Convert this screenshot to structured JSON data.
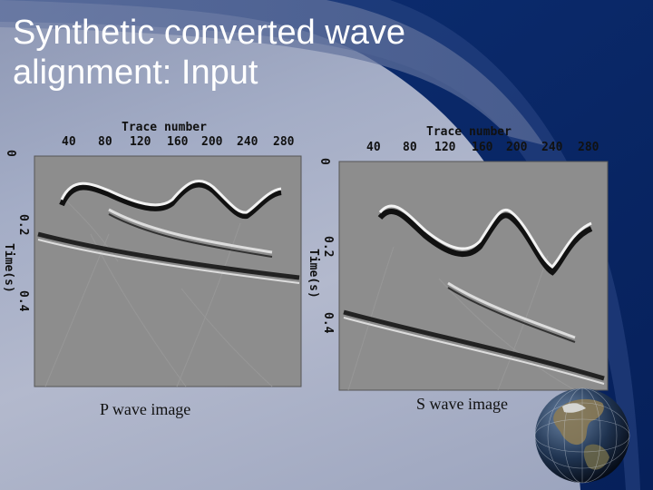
{
  "slide": {
    "title_line1": "Synthetic converted wave",
    "title_line2": "alignment: Input"
  },
  "panels": [
    {
      "id": "p",
      "axis_title_x": "Trace number",
      "axis_title_y": "Time(s)",
      "x_ticks": [
        "40",
        "80",
        "120",
        "160",
        "200",
        "240",
        "280"
      ],
      "y_ticks": [
        "0",
        "0.2",
        "0.4"
      ],
      "caption": "P wave image"
    },
    {
      "id": "s",
      "axis_title_x": "Trace number",
      "axis_title_y": "Time(s)",
      "x_ticks": [
        "40",
        "80",
        "120",
        "160",
        "200",
        "240",
        "280"
      ],
      "y_ticks": [
        "0",
        "0.2",
        "0.4"
      ],
      "caption": "S wave image"
    }
  ],
  "colors": {
    "background": "#a4adc6",
    "swoosh": "#0b2a6a",
    "seismic_bg": "#8c8c8c"
  },
  "icons": {
    "globe": "earth-globe-icon"
  }
}
